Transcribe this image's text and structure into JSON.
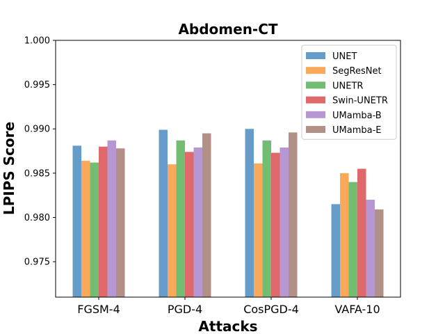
{
  "chart_data": {
    "type": "bar",
    "title": "Abdomen-CT",
    "xlabel": "Attacks",
    "ylabel": "LPIPS Score",
    "categories": [
      "FGSM-4",
      "PGD-4",
      "CosPGD-4",
      "VAFA-10"
    ],
    "ylim": [
      0.971,
      1.0
    ],
    "yticks": [
      0.975,
      0.98,
      0.985,
      0.99,
      0.995,
      1.0
    ],
    "ytick_labels": [
      "0.975",
      "0.980",
      "0.985",
      "0.990",
      "0.995",
      "1.000"
    ],
    "grid": false,
    "legend_position": "top-right",
    "series": [
      {
        "name": "UNET",
        "color": "#4a8bbf",
        "values": [
          0.9881,
          0.9899,
          0.99,
          0.9815
        ]
      },
      {
        "name": "SegResNet",
        "color": "#f99a3d",
        "values": [
          0.9864,
          0.986,
          0.9861,
          0.985
        ]
      },
      {
        "name": "UNETR",
        "color": "#59b159",
        "values": [
          0.9862,
          0.9887,
          0.9887,
          0.984
        ]
      },
      {
        "name": "Swin-UNETR",
        "color": "#d94e50",
        "values": [
          0.988,
          0.9874,
          0.9873,
          0.9855
        ]
      },
      {
        "name": "UMamba-B",
        "color": "#a985c9",
        "values": [
          0.9887,
          0.9879,
          0.9879,
          0.982
        ]
      },
      {
        "name": "UMamba-E",
        "color": "#a57c70",
        "values": [
          0.9878,
          0.9895,
          0.9896,
          0.9809
        ]
      }
    ]
  }
}
